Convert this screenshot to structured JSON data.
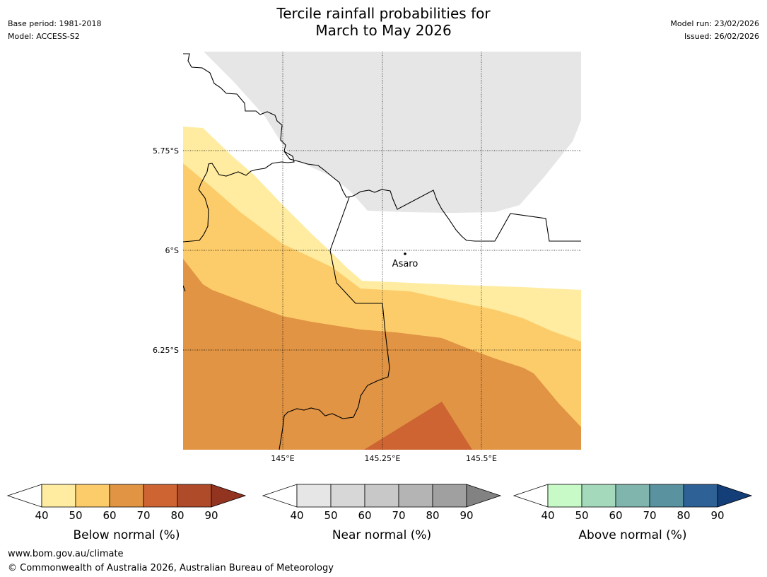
{
  "header": {
    "title_line1": "Tercile rainfall probabilities for",
    "title_line2": "March to May 2026",
    "base_period": "Base period: 1981-2018",
    "model": "Model: ACCESS-S2",
    "model_run": "Model run: 23/02/2026",
    "issued": "Issued: 26/02/2026"
  },
  "map": {
    "lat_labels": [
      "5.75°S",
      "6°S",
      "6.25°S"
    ],
    "lon_labels": [
      "145°E",
      "145.25°E",
      "145.5°E"
    ],
    "place": {
      "name": "Asaro",
      "lat": -6.01,
      "lon": 145.29
    },
    "colors": {
      "below_40_50": "#ffeca0",
      "below_50_60": "#fdcc6a",
      "below_60_70": "#e09444",
      "below_70_80": "#cd6432",
      "near_40_50": "#e6e6e6",
      "border": "#000000"
    }
  },
  "colorbars": [
    {
      "title": "Below normal (%)",
      "ticks": [
        "40",
        "50",
        "60",
        "70",
        "80",
        "90"
      ],
      "colors": [
        "#ffeca0",
        "#fdcc6a",
        "#e09444",
        "#cd6432",
        "#b04b2a"
      ],
      "extend_color": "#923420"
    },
    {
      "title": "Near normal (%)",
      "ticks": [
        "40",
        "50",
        "60",
        "70",
        "80",
        "90"
      ],
      "colors": [
        "#e6e6e6",
        "#d7d7d7",
        "#c8c8c8",
        "#b4b4b4",
        "#a0a0a0"
      ],
      "extend_color": "#828282"
    },
    {
      "title": "Above normal (%)",
      "ticks": [
        "40",
        "50",
        "60",
        "70",
        "80",
        "90"
      ],
      "colors": [
        "#c8fac8",
        "#a4d9bb",
        "#80b5ae",
        "#5a92a0",
        "#2e6296"
      ],
      "extend_color": "#133e78"
    }
  ],
  "footer": {
    "url": "www.bom.gov.au/climate",
    "copyright": "© Commonwealth of Australia 2026, Australian Bureau of Meteorology"
  }
}
